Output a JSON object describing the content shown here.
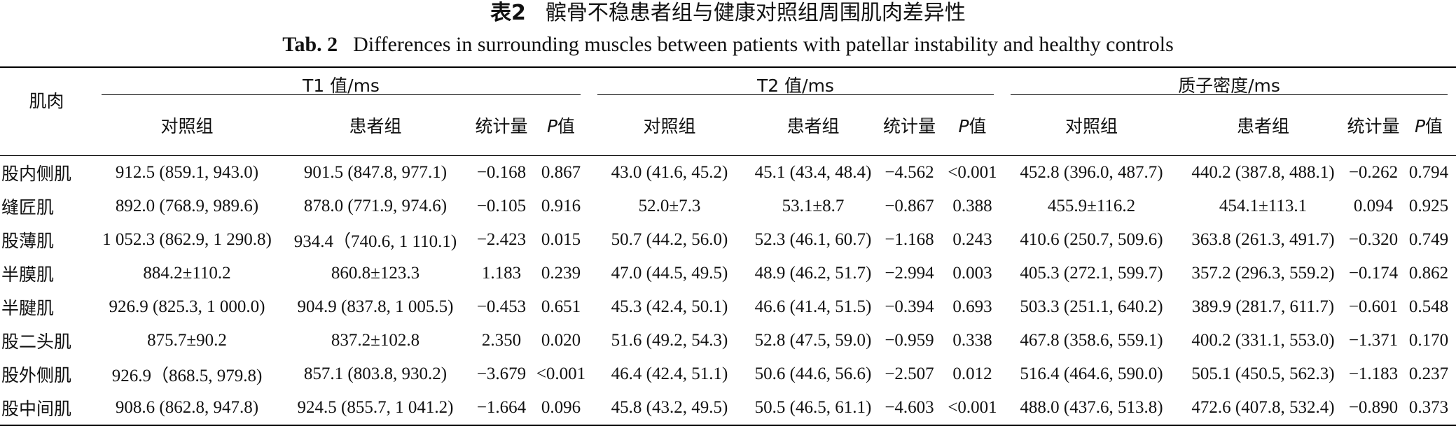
{
  "title_cn": {
    "label": "表2",
    "text": "髌骨不稳患者组与健康对照组周围肌肉差异性"
  },
  "title_en": {
    "label": "Tab. 2",
    "text": "Differences in surrounding muscles between patients with patellar instability and healthy controls"
  },
  "table": {
    "row_header": "肌肉",
    "groups": [
      "T1 值/ms",
      "T2 值/ms",
      "质子密度/ms"
    ],
    "subheaders": [
      "对照组",
      "患者组",
      "统计量",
      "P值"
    ],
    "rows": [
      [
        "股内侧肌",
        "912.5 (859.1, 943.0)",
        "901.5 (847.8, 977.1)",
        "−0.168",
        "0.867",
        "43.0 (41.6, 45.2)",
        "45.1 (43.4, 48.4)",
        "−4.562",
        "<0.001",
        "452.8 (396.0, 487.7)",
        "440.2 (387.8, 488.1)",
        "−0.262",
        "0.794"
      ],
      [
        "缝匠肌",
        "892.0 (768.9, 989.6)",
        "878.0 (771.9, 974.6)",
        "−0.105",
        "0.916",
        "52.0±7.3",
        "53.1±8.7",
        "−0.867",
        "0.388",
        "455.9±116.2",
        "454.1±113.1",
        "0.094",
        "0.925"
      ],
      [
        "股薄肌",
        "1 052.3 (862.9, 1 290.8)",
        "934.4（740.6, 1 110.1)",
        "−2.423",
        "0.015",
        "50.7 (44.2, 56.0)",
        "52.3 (46.1, 60.7)",
        "−1.168",
        "0.243",
        "410.6 (250.7, 509.6)",
        "363.8 (261.3, 491.7)",
        "−0.320",
        "0.749"
      ],
      [
        "半膜肌",
        "884.2±110.2",
        "860.8±123.3",
        "1.183",
        "0.239",
        "47.0 (44.5, 49.5)",
        "48.9 (46.2, 51.7)",
        "−2.994",
        "0.003",
        "405.3 (272.1, 599.7)",
        "357.2 (296.3, 559.2)",
        "−0.174",
        "0.862"
      ],
      [
        "半腱肌",
        "926.9 (825.3, 1 000.0)",
        "904.9 (837.8, 1 005.5)",
        "−0.453",
        "0.651",
        "45.3 (42.4, 50.1)",
        "46.6 (41.4, 51.5)",
        "−0.394",
        "0.693",
        "503.3 (251.1, 640.2)",
        "389.9 (281.7, 611.7)",
        "−0.601",
        "0.548"
      ],
      [
        "股二头肌",
        "875.7±90.2",
        "837.2±102.8",
        "2.350",
        "0.020",
        "51.6 (49.2, 54.3)",
        "52.8 (47.5, 59.0)",
        "−0.959",
        "0.338",
        "467.8 (358.6, 559.1)",
        "400.2 (331.1, 553.0)",
        "−1.371",
        "0.170"
      ],
      [
        "股外侧肌",
        "926.9（868.5, 979.8)",
        "857.1 (803.8, 930.2)",
        "−3.679",
        "<0.001",
        "46.4 (42.4, 51.1)",
        "50.6 (44.6, 56.6)",
        "−2.507",
        "0.012",
        "516.4 (464.6, 590.0)",
        "505.1 (450.5, 562.3)",
        "−1.183",
        "0.237"
      ],
      [
        "股中间肌",
        "908.6 (862.8, 947.8)",
        "924.5 (855.7, 1 041.2)",
        "−1.664",
        "0.096",
        "45.8 (43.2, 49.5)",
        "50.5 (46.5, 61.1)",
        "−4.603",
        "<0.001",
        "488.0 (437.6, 513.8)",
        "472.6 (407.8, 532.4)",
        "−0.890",
        "0.373"
      ]
    ]
  }
}
